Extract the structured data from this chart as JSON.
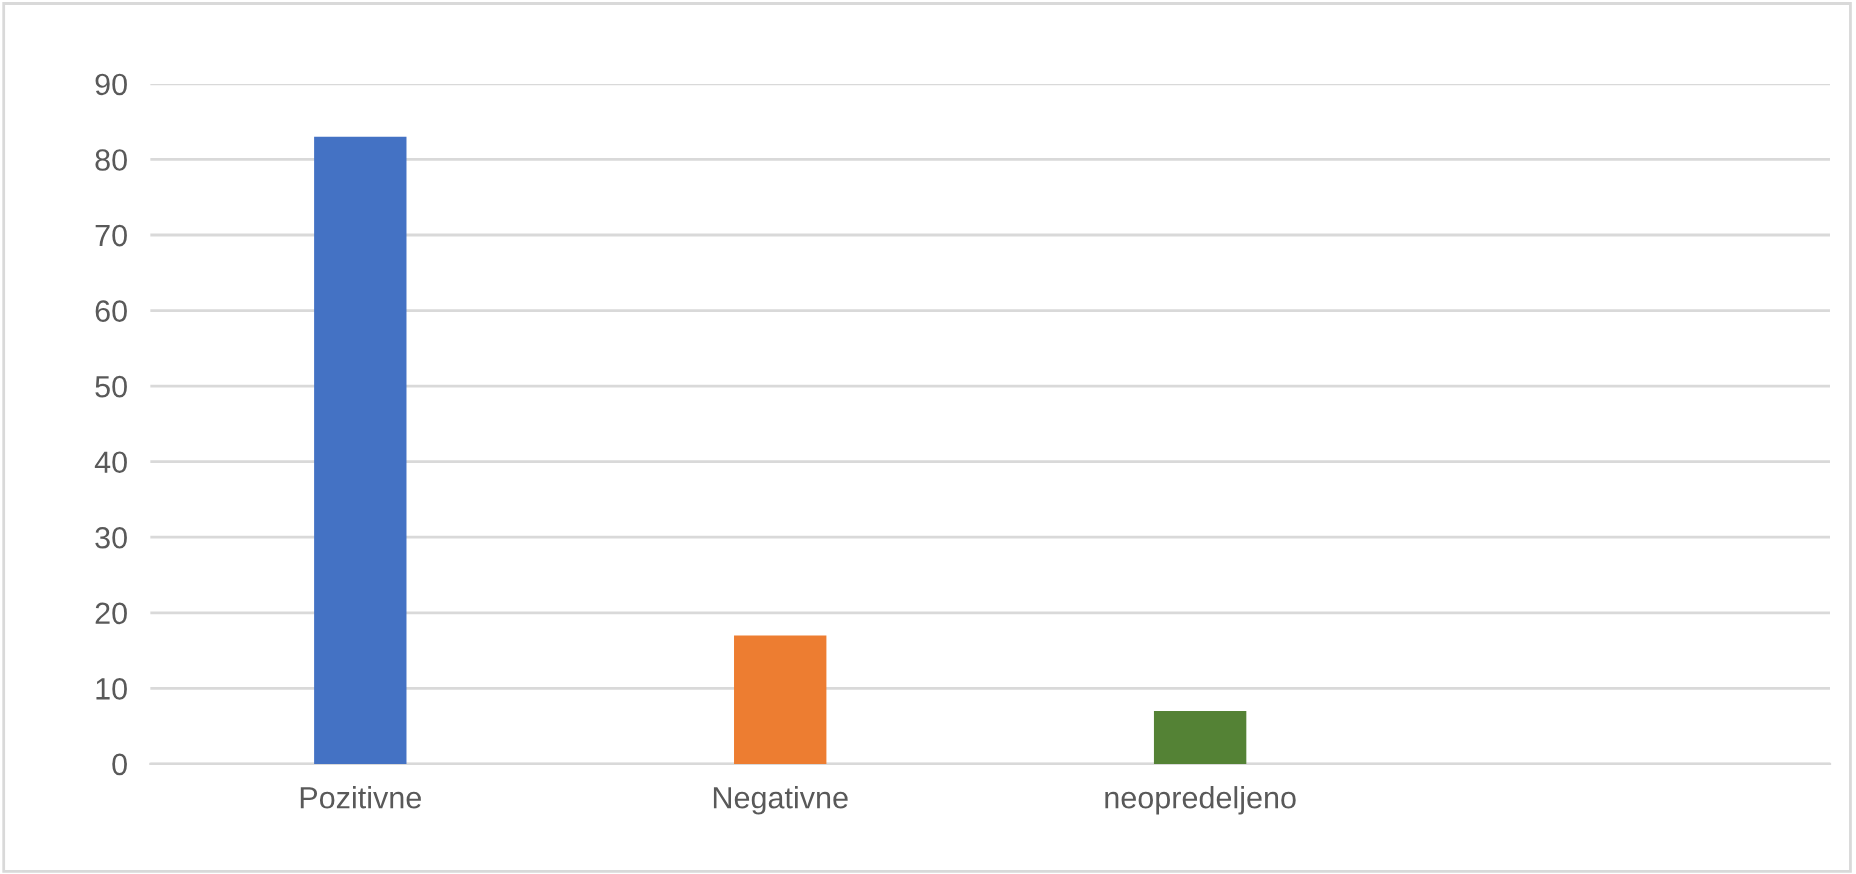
{
  "chart_data": {
    "type": "bar",
    "categories": [
      "Pozitivne",
      "Negativne",
      "neopredeljeno",
      null
    ],
    "values": [
      83,
      17,
      7,
      null
    ],
    "colors": [
      "#4472c4",
      "#ed7d31",
      "#548235",
      "#a5a5a5"
    ],
    "ylim": [
      0,
      90
    ],
    "yticks": [
      0,
      10,
      20,
      30,
      40,
      50,
      60,
      70,
      80,
      90
    ],
    "grid": "y"
  }
}
